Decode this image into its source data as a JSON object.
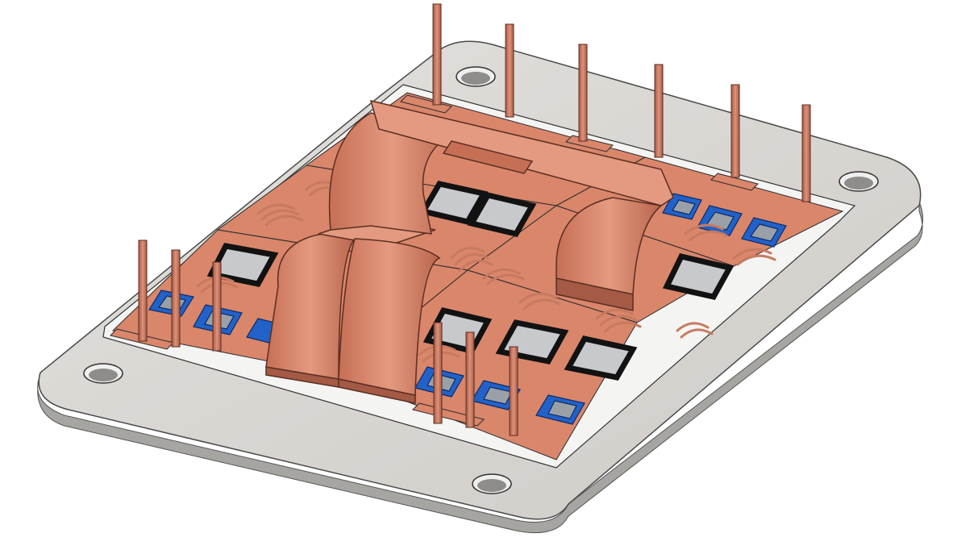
{
  "colors": {
    "background": "#ffffff",
    "baseplate_top": "#d9d7d3",
    "baseplate_side": "#a7a5a1",
    "substrate_edge": "#f4f4f2",
    "copper": "#d9866b",
    "copper_dark": "#a45a45",
    "copper_light": "#eba58d",
    "die_gray": "#c7c9cc",
    "die_frame": "#121212",
    "die_blue": "#2262c8",
    "mount_hole": "#8f8d8a"
  },
  "components": {
    "mounting_holes": 4,
    "substrates": 6,
    "signal_pins": 12,
    "bus_bar_terminals": 3
  }
}
